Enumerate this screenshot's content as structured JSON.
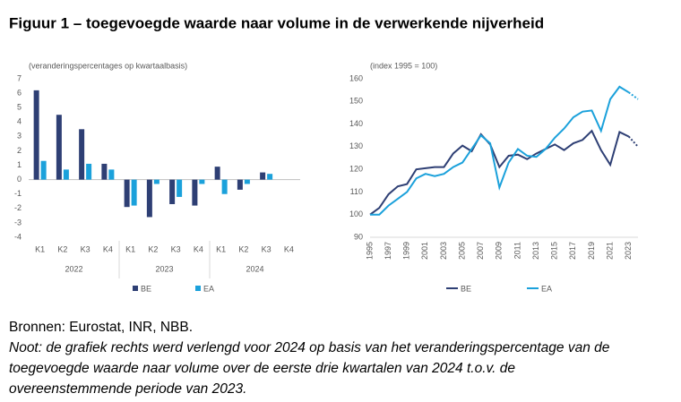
{
  "title": "Figuur 1 – toegevoegde waarde naar volume in de verwerkende nijverheid",
  "chart_data": [
    {
      "type": "bar",
      "axis_label": "(veranderingspercentages op kwartaalbasis)",
      "categories": [
        "K1",
        "K2",
        "K3",
        "K4",
        "K1",
        "K2",
        "K3",
        "K4",
        "K1",
        "K2",
        "K3",
        "K4"
      ],
      "groups": [
        "2022",
        "2023",
        "2024"
      ],
      "series": [
        {
          "name": "BE",
          "color": "#2e3f74",
          "values": [
            6.2,
            4.5,
            3.5,
            1.1,
            -1.9,
            -2.6,
            -1.7,
            -1.8,
            0.9,
            -0.7,
            0.5,
            null
          ]
        },
        {
          "name": "EA",
          "color": "#1ba1db",
          "values": [
            1.3,
            0.7,
            1.1,
            0.7,
            -1.8,
            -0.3,
            -1.2,
            -0.3,
            -1.0,
            -0.3,
            0.4,
            null
          ]
        }
      ],
      "ylim": [
        -4,
        7
      ],
      "yticks": [
        -4,
        -3,
        -2,
        -1,
        0,
        1,
        2,
        3,
        4,
        5,
        6,
        7
      ],
      "legend": "bottom"
    },
    {
      "type": "line",
      "axis_label": "(index 1995 = 100)",
      "x": [
        1995,
        1996,
        1997,
        1998,
        1999,
        2000,
        2001,
        2002,
        2003,
        2004,
        2005,
        2006,
        2007,
        2008,
        2009,
        2010,
        2011,
        2012,
        2013,
        2014,
        2015,
        2016,
        2017,
        2018,
        2019,
        2020,
        2021,
        2022,
        2023,
        2024
      ],
      "series": [
        {
          "name": "BE",
          "color": "#2e3f74",
          "values": [
            100,
            103,
            109,
            112.5,
            113.5,
            120,
            120.5,
            121,
            121,
            127,
            130.5,
            128,
            135.5,
            131,
            121,
            126,
            126.5,
            124.5,
            127,
            129,
            131,
            128.5,
            131.5,
            133,
            137,
            128.5,
            122,
            136.5,
            134.5,
            130
          ]
        },
        {
          "name": "EA",
          "color": "#1ba1db",
          "values": [
            100,
            100,
            104,
            107,
            110,
            116,
            118,
            117,
            118,
            121,
            123,
            129,
            135,
            131.5,
            112,
            123,
            129,
            126,
            125.5,
            129,
            134,
            138,
            143,
            145.5,
            146,
            137,
            151,
            156.5,
            154,
            151
          ]
        }
      ],
      "projection_start": 2023,
      "xlim": [
        1995,
        2024
      ],
      "xticks": [
        1995,
        1997,
        1999,
        2001,
        2003,
        2005,
        2007,
        2009,
        2011,
        2013,
        2015,
        2017,
        2019,
        2021,
        2023
      ],
      "ylim": [
        90,
        160
      ],
      "yticks": [
        90,
        100,
        110,
        120,
        130,
        140,
        150,
        160
      ],
      "legend": "bottom"
    }
  ],
  "source": "Bronnen: Eurostat, INR, NBB.",
  "note": [
    "Noot: de grafiek rechts werd verlengd voor 2024 op basis van het veranderingspercentage van de",
    "toegevoegde waarde naar volume over de eerste drie kwartalen van 2024 t.o.v. de",
    "overeenstemmende periode van 2023."
  ]
}
